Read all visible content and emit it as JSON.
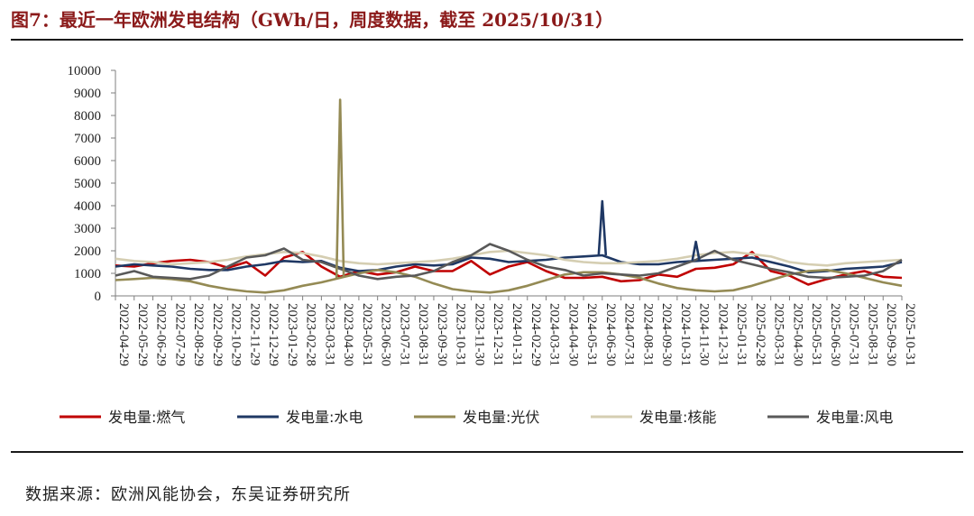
{
  "title": "图7：最近一年欧洲发电结构（GWh/日，周度数据，截至 2025/10/31）",
  "source": "数据来源：欧洲风能协会，东吴证券研究所",
  "chart_data": {
    "type": "line",
    "ylim": [
      0,
      10000
    ],
    "yticks": [
      0,
      1000,
      2000,
      3000,
      4000,
      5000,
      6000,
      7000,
      8000,
      9000,
      10000
    ],
    "grid": false,
    "legend_position": "bottom",
    "xticks": [
      "2022-04-29",
      "2022-05-29",
      "2022-06-29",
      "2022-07-29",
      "2022-08-29",
      "2022-09-29",
      "2022-10-29",
      "2022-11-29",
      "2022-12-29",
      "2023-01-29",
      "2023-02-28",
      "2023-03-31",
      "2023-04-30",
      "2023-05-31",
      "2023-06-30",
      "2023-07-31",
      "2023-08-31",
      "2023-09-30",
      "2023-10-31",
      "2023-11-30",
      "2023-12-31",
      "2024-01-31",
      "2024-02-29",
      "2024-03-31",
      "2024-04-30",
      "2024-05-31",
      "2024-06-30",
      "2024-07-31",
      "2024-08-31",
      "2024-09-30",
      "2024-10-31",
      "2024-11-30",
      "2024-12-31",
      "2025-01-31",
      "2025-02-28",
      "2025-03-31",
      "2025-04-30",
      "2025-05-31",
      "2025-06-30",
      "2025-07-31",
      "2025-08-31",
      "2025-09-30",
      "2025-10-31"
    ],
    "series": [
      {
        "name": "发电量:燃气",
        "color": "#c00000",
        "values": [
          1350,
          1300,
          1450,
          1550,
          1600,
          1500,
          1250,
          1500,
          900,
          1700,
          1950,
          1300,
          850,
          1100,
          950,
          1050,
          1300,
          1100,
          1100,
          1550,
          950,
          1300,
          1500,
          1100,
          800,
          800,
          850,
          650,
          700,
          950,
          850,
          1200,
          1250,
          1400,
          1950,
          1100,
          900,
          500,
          750,
          950,
          1100,
          850,
          800
        ]
      },
      {
        "name": "发电量:水电",
        "color": "#1f3864",
        "values": [
          1300,
          1400,
          1350,
          1300,
          1200,
          1150,
          1150,
          1300,
          1400,
          1550,
          1500,
          1550,
          1250,
          1100,
          1150,
          1300,
          1400,
          1350,
          1400,
          1700,
          1650,
          1500,
          1550,
          1600,
          1700,
          1750,
          1800,
          1500,
          1400,
          1400,
          1500,
          1550,
          1600,
          1650,
          1700,
          1500,
          1300,
          1050,
          1100,
          1200,
          1250,
          1300,
          1500
        ]
      },
      {
        "name": "发电量:光伏",
        "color": "#948a54",
        "values": [
          700,
          750,
          800,
          750,
          650,
          450,
          300,
          200,
          150,
          250,
          450,
          600,
          800,
          1000,
          1150,
          1050,
          850,
          550,
          300,
          200,
          150,
          250,
          450,
          700,
          950,
          1050,
          1050,
          950,
          800,
          550,
          350,
          250,
          200,
          250,
          450,
          700,
          950,
          1100,
          1150,
          1000,
          800,
          600,
          450
        ]
      },
      {
        "name": "发电量:核能",
        "color": "#d5ceb2",
        "values": [
          1650,
          1550,
          1500,
          1400,
          1450,
          1500,
          1600,
          1750,
          1850,
          1950,
          1900,
          1750,
          1550,
          1450,
          1400,
          1450,
          1500,
          1550,
          1650,
          1800,
          1950,
          2000,
          1900,
          1800,
          1600,
          1500,
          1450,
          1450,
          1500,
          1550,
          1650,
          1800,
          1900,
          1950,
          1850,
          1750,
          1500,
          1400,
          1350,
          1450,
          1500,
          1550,
          1600
        ]
      },
      {
        "name": "发电量:风电",
        "color": "#595959",
        "values": [
          900,
          1100,
          850,
          800,
          750,
          900,
          1300,
          1700,
          1800,
          2100,
          1600,
          1500,
          1200,
          900,
          750,
          850,
          900,
          1100,
          1500,
          1800,
          2300,
          2000,
          1600,
          1300,
          1150,
          900,
          1000,
          950,
          900,
          1000,
          1300,
          1600,
          2000,
          1600,
          1400,
          1200,
          1050,
          850,
          800,
          850,
          900,
          1100,
          1600
        ]
      }
    ],
    "spikes": [
      {
        "series": "发电量:光伏",
        "x": "2023-04-30",
        "value": 8700
      },
      {
        "series": "发电量:水电",
        "x": "2024-06-30",
        "value": 4200
      },
      {
        "series": "发电量:水电",
        "x": "2024-11-30",
        "value": 2400
      }
    ]
  }
}
